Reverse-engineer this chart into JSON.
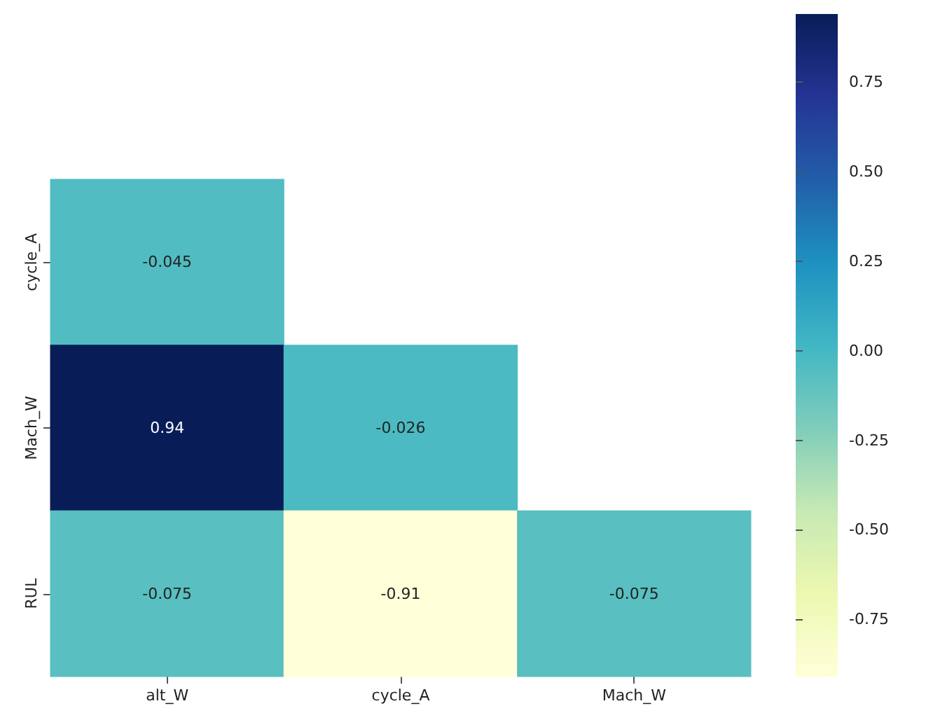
{
  "chart_data": {
    "type": "heatmap",
    "categories": [
      "alt_W",
      "cycle_A",
      "Mach_W"
    ],
    "y_categories": [
      "cycle_A",
      "Mach_W",
      "RUL"
    ],
    "cells": [
      [
        -0.045,
        null,
        null
      ],
      [
        0.94,
        -0.026,
        null
      ],
      [
        -0.075,
        -0.91,
        -0.075
      ]
    ],
    "data_labels": true,
    "clim": [
      -0.91,
      0.94
    ],
    "cticks": [
      {
        "value": -0.75,
        "label": "-0.75"
      },
      {
        "value": -0.5,
        "label": "-0.50"
      },
      {
        "value": -0.25,
        "label": "-0.25"
      },
      {
        "value": 0,
        "label": "0.00"
      },
      {
        "value": 0.25,
        "label": "0.25"
      },
      {
        "value": 0.5,
        "label": "0.50"
      },
      {
        "value": 0.75,
        "label": "0.75"
      }
    ]
  }
}
